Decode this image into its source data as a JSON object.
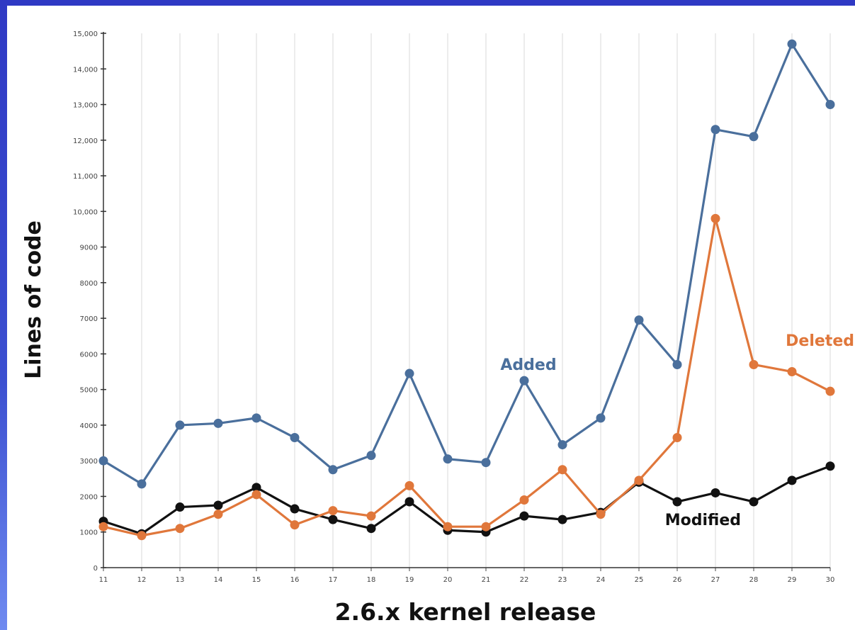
{
  "chart_data": {
    "type": "line",
    "title": "",
    "xlabel": "2.6.x kernel release",
    "ylabel": "Lines of code",
    "categories": [
      "11",
      "12",
      "13",
      "14",
      "15",
      "16",
      "17",
      "18",
      "19",
      "20",
      "21",
      "22",
      "23",
      "24",
      "25",
      "26",
      "27",
      "28",
      "29",
      "30"
    ],
    "yticks": [
      0,
      1000,
      2000,
      3000,
      4000,
      5000,
      6000,
      7000,
      8000,
      9000,
      10000,
      11000,
      12000,
      13000,
      14000,
      15000
    ],
    "ytick_labels": [
      "0",
      "1000",
      "2000",
      "3000",
      "4000",
      "5000",
      "6000",
      "7000",
      "8000",
      "9000",
      "10,000",
      "11,000",
      "12,000",
      "13,000",
      "14,000",
      "15,000"
    ],
    "ylim": [
      0,
      15000
    ],
    "grid": "vertical",
    "series": [
      {
        "name": "Added",
        "color": "#4a6f9c",
        "values": [
          3000,
          2350,
          4000,
          4050,
          4200,
          3650,
          2750,
          3150,
          5450,
          3050,
          2950,
          5250,
          3450,
          4200,
          6950,
          5700,
          12300,
          12100,
          14700,
          13000
        ]
      },
      {
        "name": "Deleted",
        "color": "#e0773b",
        "values": [
          1150,
          900,
          1100,
          1500,
          2050,
          1200,
          1600,
          1450,
          2300,
          1150,
          1150,
          1900,
          2750,
          1500,
          2450,
          3650,
          9800,
          5700,
          5500,
          4950
        ]
      },
      {
        "name": "Modified",
        "color": "#111111",
        "values": [
          1300,
          950,
          1700,
          1750,
          2250,
          1650,
          1350,
          1100,
          1850,
          1050,
          1000,
          1450,
          1350,
          1550,
          2400,
          1850,
          2100,
          1850,
          2450,
          2850
        ]
      }
    ]
  }
}
